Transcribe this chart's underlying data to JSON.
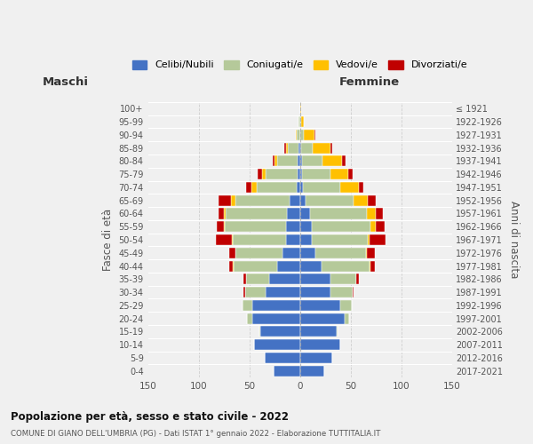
{
  "age_groups": [
    "0-4",
    "5-9",
    "10-14",
    "15-19",
    "20-24",
    "25-29",
    "30-34",
    "35-39",
    "40-44",
    "45-49",
    "50-54",
    "55-59",
    "60-64",
    "65-69",
    "70-74",
    "75-79",
    "80-84",
    "85-89",
    "90-94",
    "95-99",
    "100+"
  ],
  "birth_years": [
    "2017-2021",
    "2012-2016",
    "2007-2011",
    "2002-2006",
    "1997-2001",
    "1992-1996",
    "1987-1991",
    "1982-1986",
    "1977-1981",
    "1972-1976",
    "1967-1971",
    "1962-1966",
    "1957-1961",
    "1952-1956",
    "1947-1951",
    "1942-1946",
    "1937-1941",
    "1932-1936",
    "1927-1931",
    "1922-1926",
    "≤ 1921"
  ],
  "male": {
    "celibi": [
      26,
      35,
      45,
      39,
      47,
      47,
      34,
      30,
      22,
      17,
      14,
      14,
      13,
      10,
      3,
      2,
      2,
      1,
      0,
      0,
      0
    ],
    "coniugati": [
      0,
      0,
      0,
      1,
      5,
      10,
      20,
      23,
      43,
      47,
      52,
      60,
      60,
      54,
      40,
      32,
      20,
      11,
      3,
      1,
      0
    ],
    "vedovi": [
      0,
      0,
      0,
      0,
      0,
      0,
      0,
      0,
      1,
      0,
      1,
      1,
      2,
      4,
      5,
      3,
      3,
      2,
      1,
      0,
      0
    ],
    "divorziati": [
      0,
      0,
      0,
      0,
      0,
      0,
      2,
      3,
      4,
      6,
      16,
      7,
      5,
      12,
      5,
      5,
      2,
      1,
      0,
      0,
      0
    ]
  },
  "female": {
    "nubili": [
      24,
      32,
      40,
      36,
      44,
      40,
      30,
      30,
      21,
      15,
      12,
      12,
      10,
      6,
      3,
      2,
      2,
      1,
      0,
      0,
      0
    ],
    "coniugate": [
      0,
      0,
      0,
      1,
      5,
      11,
      22,
      26,
      48,
      50,
      55,
      58,
      56,
      47,
      37,
      28,
      20,
      12,
      4,
      1,
      0
    ],
    "vedove": [
      0,
      0,
      0,
      0,
      0,
      0,
      0,
      0,
      1,
      1,
      2,
      5,
      9,
      14,
      18,
      18,
      20,
      17,
      10,
      3,
      1
    ],
    "divorziate": [
      0,
      0,
      0,
      0,
      0,
      0,
      1,
      2,
      4,
      8,
      16,
      9,
      7,
      8,
      5,
      4,
      3,
      2,
      1,
      0,
      0
    ]
  },
  "colors": {
    "celibi": "#4472c4",
    "coniugati": "#b5c99a",
    "vedovi": "#ffc000",
    "divorziati": "#c00000"
  },
  "xlim": 150,
  "title": "Popolazione per età, sesso e stato civile - 2022",
  "subtitle": "COMUNE DI GIANO DELL'UMBRIA (PG) - Dati ISTAT 1° gennaio 2022 - Elaborazione TUTTITALIA.IT",
  "ylabel": "Fasce di età",
  "ylabel_right": "Anni di nascita",
  "label_maschi": "Maschi",
  "label_femmine": "Femmine",
  "legend_labels": [
    "Celibi/Nubili",
    "Coniugati/e",
    "Vedovi/e",
    "Divorziati/e"
  ],
  "bg_color": "#f0f0f0",
  "grid_color": "#cccccc"
}
